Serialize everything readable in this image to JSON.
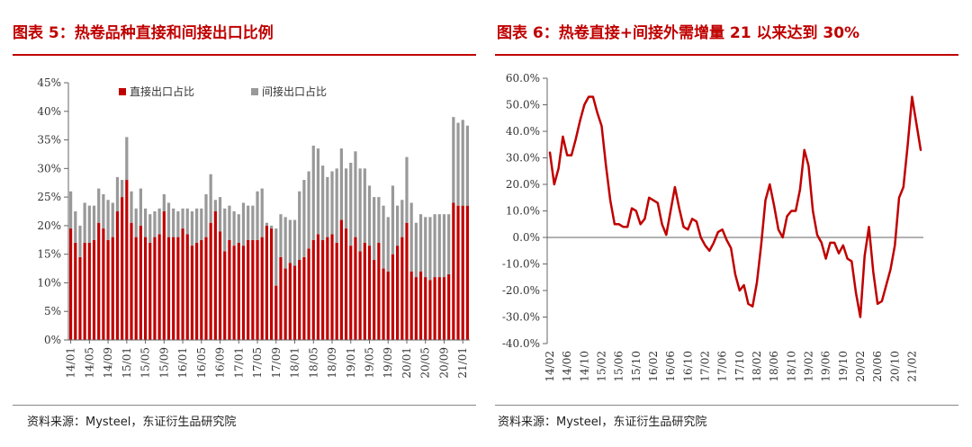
{
  "left": {
    "title": "图表 5：热卷品种直接和间接出口比例",
    "source": "资料来源：Mysteel，东证衍生品研究院"
  },
  "right": {
    "title": "图表 6：热卷直接+间接外需增量 21 以来达到 30%",
    "source": "资料来源：Mysteel，东证衍生品研究院"
  },
  "colors": {
    "red": "#c00000",
    "gray": "#999999",
    "title": "#c00000"
  },
  "chart_data": [
    {
      "type": "bar",
      "stacked": true,
      "x_tick_labels": [
        "14/01",
        "14/05",
        "14/09",
        "15/01",
        "15/05",
        "15/09",
        "16/01",
        "16/05",
        "16/09",
        "17/01",
        "17/05",
        "17/09",
        "18/01",
        "18/05",
        "18/09",
        "19/01",
        "19/05",
        "19/09",
        "20/01",
        "20/05",
        "20/09",
        "21/01"
      ],
      "y_tick_labels": [
        "0%",
        "5%",
        "10%",
        "15%",
        "20%",
        "25%",
        "30%",
        "35%",
        "40%",
        "45%"
      ],
      "ylim": [
        0,
        45
      ],
      "legend_position": "top",
      "series": [
        {
          "name": "直接出口占比",
          "color": "#c00000",
          "values": [
            19.5,
            17,
            14.5,
            17,
            17,
            17.5,
            20.5,
            19.5,
            17.5,
            18,
            22.5,
            25,
            28,
            20.5,
            18,
            20,
            18,
            17,
            18,
            18.5,
            22.5,
            18,
            18,
            18,
            19.5,
            18.5,
            16.5,
            17,
            17.5,
            18,
            20.5,
            22.5,
            19,
            15.5,
            17.5,
            16.5,
            17,
            16.5,
            17.5,
            17.5,
            17.5,
            18,
            20,
            19.5,
            9.5,
            14.5,
            12.5,
            13.5,
            13,
            14,
            14.5,
            16,
            17.5,
            18.5,
            17.5,
            18,
            18.5,
            17,
            21,
            19.5,
            16.5,
            18,
            15.5,
            17,
            16.5,
            14,
            17,
            12.5,
            12,
            15,
            16.5,
            18,
            20.5,
            12,
            11,
            12,
            11,
            10.5,
            11,
            11,
            11,
            11.5,
            24,
            23.5,
            23.5,
            23.5
          ]
        },
        {
          "name": "间接出口占比",
          "color": "#999999",
          "values": [
            6.5,
            5.5,
            5.5,
            7,
            6.5,
            6,
            6,
            6,
            7,
            6,
            6,
            3,
            7.5,
            5.5,
            5,
            6.5,
            5,
            5,
            4.5,
            4.5,
            3,
            6,
            5,
            4.5,
            3.5,
            4.5,
            6,
            6,
            5.5,
            7.5,
            8.5,
            2,
            6,
            7.5,
            6,
            6,
            5,
            7.5,
            6,
            6,
            8.5,
            8.5,
            0.5,
            0.5,
            10,
            7.5,
            9,
            7.5,
            8,
            12,
            13.5,
            13.5,
            16.5,
            15,
            13,
            10.5,
            11,
            13,
            12.5,
            10.5,
            14.5,
            15,
            14.5,
            13,
            10.5,
            11,
            8,
            11,
            9.5,
            12,
            7,
            6.5,
            11.5,
            12,
            9.5,
            10,
            10.5,
            11,
            11,
            11,
            11,
            10.5,
            15,
            14.5,
            15,
            14
          ]
        }
      ]
    },
    {
      "type": "line",
      "x_tick_labels": [
        "14/02",
        "14/06",
        "14/10",
        "15/02",
        "15/06",
        "15/10",
        "16/02",
        "16/06",
        "16/10",
        "17/02",
        "17/06",
        "17/10",
        "18/02",
        "18/06",
        "18/10",
        "19/02",
        "19/06",
        "19/10",
        "20/02",
        "20/06",
        "20/10",
        "21/02"
      ],
      "y_tick_labels": [
        "-40.0%",
        "-30.0%",
        "-20.0%",
        "-10.0%",
        "0.0%",
        "10.0%",
        "20.0%",
        "30.0%",
        "40.0%",
        "50.0%",
        "60.0%"
      ],
      "ylim": [
        -40,
        60
      ],
      "series": [
        {
          "name": "",
          "color": "#c00000",
          "values": [
            32,
            20,
            26,
            38,
            31,
            31,
            37,
            44,
            50,
            53,
            53,
            47,
            42,
            27,
            14,
            5,
            5,
            4,
            4,
            11,
            10,
            5,
            7,
            15,
            14,
            13,
            5,
            1,
            10,
            19,
            11,
            4,
            3,
            7,
            6,
            0,
            -3,
            -5,
            -2,
            2,
            3,
            -1,
            -4,
            -14,
            -20,
            -18,
            -25,
            -26,
            -17,
            -3,
            14,
            20,
            12,
            3,
            0,
            8,
            10,
            10,
            18,
            33,
            27,
            10,
            1,
            -2,
            -8,
            -2,
            -2,
            -6,
            -3,
            -8,
            -9,
            -21,
            -30,
            -7,
            4,
            -13,
            -25,
            -24,
            -18,
            -12,
            -3,
            15,
            19,
            35,
            53,
            43,
            33
          ]
        }
      ]
    }
  ]
}
